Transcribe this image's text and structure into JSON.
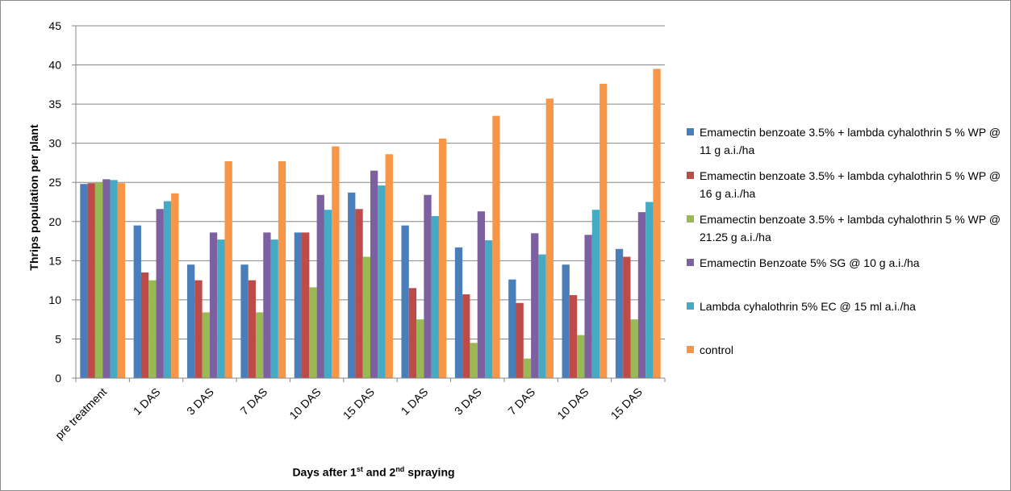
{
  "chart_data": {
    "type": "bar",
    "ylabel": "Thrips population per plant",
    "xlabel": {
      "parts": [
        {
          "text": "Days after 1",
          "sup": false
        },
        {
          "text": "st",
          "sup": true
        },
        {
          "text": " and 2",
          "sup": false
        },
        {
          "text": "nd",
          "sup": true
        },
        {
          "text": " spraying",
          "sup": false
        }
      ]
    },
    "ylim": [
      0,
      45
    ],
    "yticks": [
      0,
      5,
      10,
      15,
      20,
      25,
      30,
      35,
      40,
      45
    ],
    "grid": true,
    "legend_position": "right",
    "categories": [
      "pre treatment",
      "1 DAS",
      "3 DAS",
      "7 DAS",
      "10 DAS",
      "15 DAS",
      "1 DAS",
      "3 DAS",
      "7 DAS",
      "10 DAS",
      "15 DAS"
    ],
    "series": [
      {
        "name": "Emamectin benzoate 3.5% + lambda cyhalothrin 5 % WP @ 11 g a.i./ha",
        "color": "#4a7ebb",
        "values": [
          24.8,
          19.5,
          14.5,
          14.5,
          18.6,
          23.7,
          19.5,
          16.7,
          12.6,
          14.5,
          16.5
        ]
      },
      {
        "name": "Emamectin benzoate 3.5% + lambda cyhalothrin 5 % WP @ 16 g a.i./ha",
        "color": "#be4b48",
        "values": [
          24.9,
          13.5,
          12.5,
          12.5,
          18.6,
          21.6,
          11.5,
          10.7,
          9.6,
          10.6,
          15.5
        ]
      },
      {
        "name": "Emamectin benzoate 3.5% + lambda cyhalothrin 5 % WP @ 21.25 g a.i./ha",
        "color": "#98b954",
        "values": [
          25.0,
          12.5,
          8.4,
          8.4,
          11.6,
          15.5,
          7.5,
          4.5,
          2.5,
          5.5,
          7.5
        ]
      },
      {
        "name": "Emamectin Benzoate 5% SG @ 10 g a.i./ha",
        "color": "#7d60a0",
        "values": [
          25.4,
          21.6,
          18.6,
          18.6,
          23.4,
          26.5,
          23.4,
          21.3,
          18.5,
          18.3,
          21.2
        ]
      },
      {
        "name": "Lambda cyhalothrin 5% EC @ 15 ml a.i./ha",
        "color": "#46aac5",
        "values": [
          25.3,
          22.6,
          17.7,
          17.7,
          21.5,
          24.6,
          20.7,
          17.6,
          15.8,
          21.5,
          22.5
        ]
      },
      {
        "name": "control",
        "color": "#f79646",
        "values": [
          24.9,
          23.6,
          27.7,
          27.7,
          29.6,
          28.6,
          30.6,
          33.5,
          35.7,
          37.6,
          39.5
        ]
      }
    ]
  }
}
